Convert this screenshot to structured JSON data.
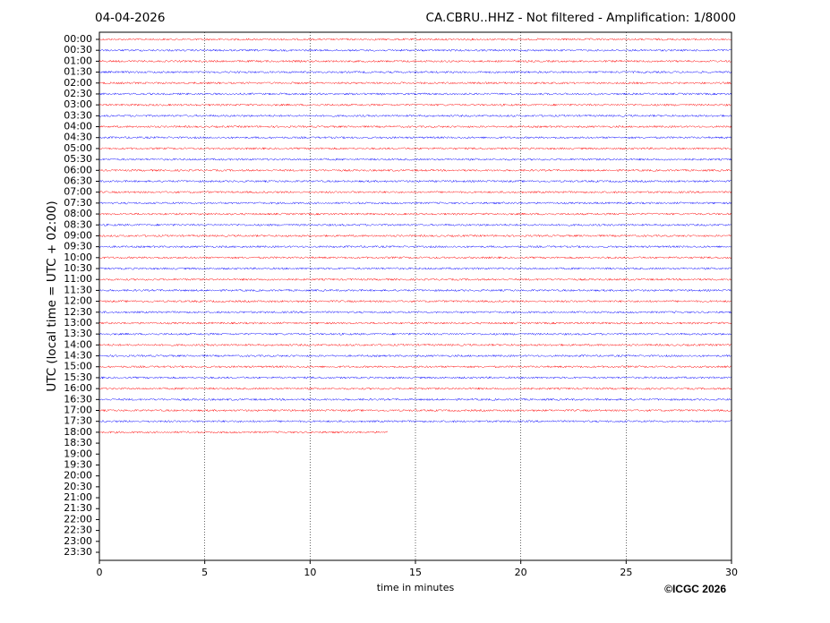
{
  "chart_data": {
    "type": "helicorder",
    "title_left": "04-04-2026",
    "title_right": "CA.CBRU..HHZ - Not filtered - Amplification: 1/8000",
    "y_label": "UTC (local time = UTC + 02:00)",
    "x_label": "time in minutes",
    "copyright": "©ICGC 2026",
    "categories": [
      "00:00",
      "00:30",
      "01:00",
      "01:30",
      "02:00",
      "02:30",
      "03:00",
      "03:30",
      "04:00",
      "04:30",
      "05:00",
      "05:30",
      "06:00",
      "06:30",
      "07:00",
      "07:30",
      "08:00",
      "08:30",
      "09:00",
      "09:30",
      "10:00",
      "10:30",
      "11:00",
      "11:30",
      "12:00",
      "12:30",
      "13:00",
      "13:30",
      "14:00",
      "14:30",
      "15:00",
      "15:30",
      "16:00",
      "16:30",
      "17:00",
      "17:30",
      "18:00",
      "18:30",
      "19:00",
      "19:30",
      "20:00",
      "20:30",
      "21:00",
      "21:30",
      "22:00",
      "22:30",
      "23:00",
      "23:30"
    ],
    "trace_ends": [
      30,
      30,
      30,
      30,
      30,
      30,
      30,
      30,
      30,
      30,
      30,
      30,
      30,
      30,
      30,
      30,
      30,
      30,
      30,
      30,
      30,
      30,
      30,
      30,
      30,
      30,
      30,
      30,
      30,
      30,
      30,
      30,
      30,
      30,
      30,
      30,
      13.7
    ],
    "colors": [
      "#ff0000",
      "#0000ff"
    ],
    "xlim": [
      0,
      30
    ],
    "xticks": [
      0,
      5,
      10,
      15,
      20,
      25,
      30
    ],
    "grid": true
  }
}
